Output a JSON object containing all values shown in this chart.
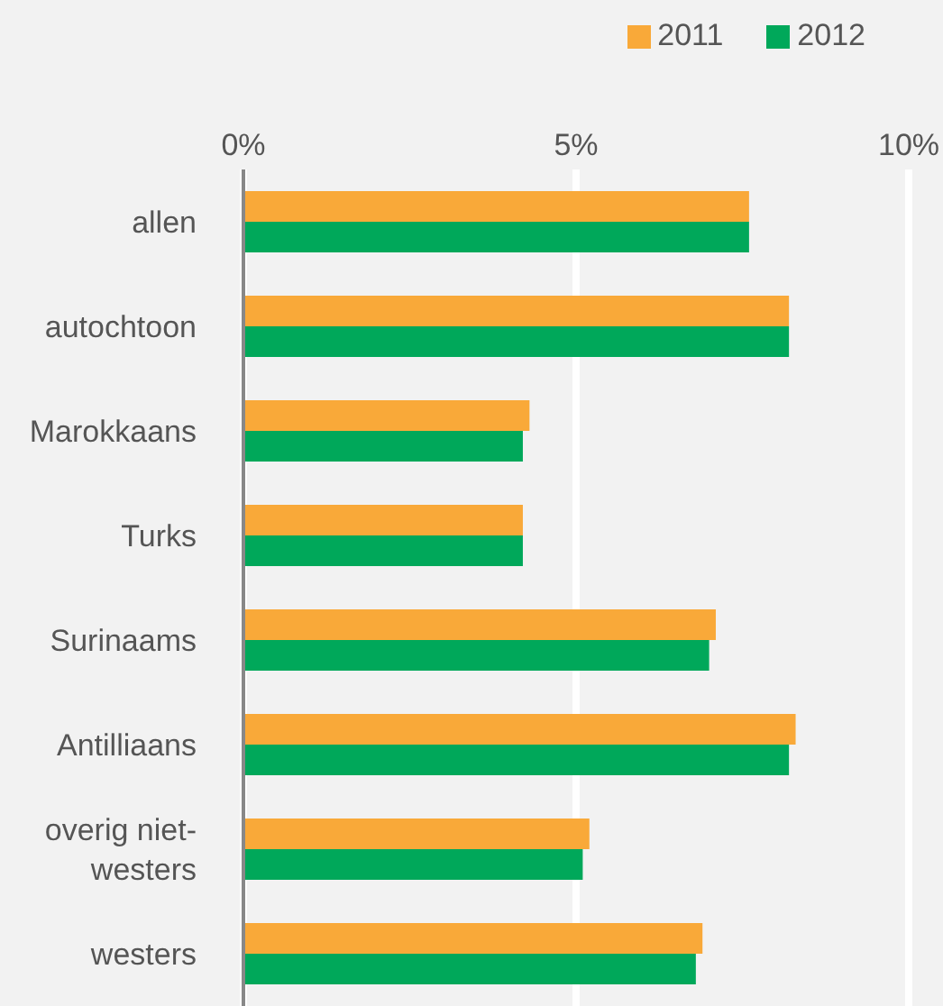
{
  "chart_data": {
    "type": "bar",
    "orientation": "horizontal",
    "categories": [
      "allen",
      "autochtoon",
      "Marokkaans",
      "Turks",
      "Surinaams",
      "Antilliaans",
      "overig niet-westers",
      "westers"
    ],
    "series": [
      {
        "name": "2011",
        "color": "#f9a939",
        "values": [
          7.6,
          8.2,
          4.3,
          4.2,
          7.1,
          8.3,
          5.2,
          6.9
        ]
      },
      {
        "name": "2012",
        "color": "#00a85a",
        "values": [
          7.6,
          8.2,
          4.2,
          4.2,
          7.0,
          8.2,
          5.1,
          6.8
        ]
      }
    ],
    "xlim": [
      0,
      10
    ],
    "xticks": [
      {
        "value": 0,
        "label": "0%"
      },
      {
        "value": 5,
        "label": "5%"
      },
      {
        "value": 10,
        "label": "10%"
      }
    ],
    "grid": "x",
    "legend": "top right"
  }
}
